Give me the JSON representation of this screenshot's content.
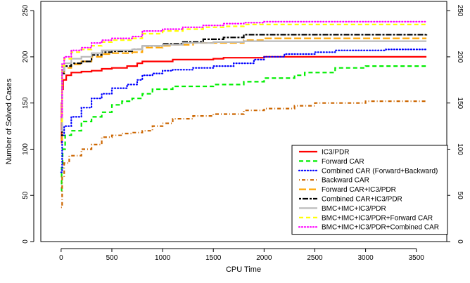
{
  "chart_data": {
    "type": "line",
    "title": "",
    "xlabel": "CPU Time",
    "ylabel": "Number of Solved Cases",
    "xlim": [
      -200,
      3800
    ],
    "ylim": [
      0,
      260
    ],
    "x_ticks": [
      "0",
      "500",
      "1000",
      "1500",
      "2000",
      "2500",
      "3000",
      "3500"
    ],
    "y_ticks": [
      "0",
      "50",
      "100",
      "150",
      "200",
      "250"
    ],
    "grid": false,
    "legend_position": "bottom-right",
    "series": [
      {
        "name": "IC3/PDR",
        "color": "#ff0000",
        "dash": "solid",
        "points": [
          [
            0,
            107
          ],
          [
            5,
            150
          ],
          [
            10,
            165
          ],
          [
            20,
            175
          ],
          [
            50,
            180
          ],
          [
            100,
            183
          ],
          [
            200,
            184
          ],
          [
            300,
            185
          ],
          [
            400,
            187
          ],
          [
            500,
            188
          ],
          [
            650,
            190
          ],
          [
            750,
            193
          ],
          [
            800,
            195
          ],
          [
            1000,
            195
          ],
          [
            1100,
            197
          ],
          [
            1500,
            198
          ],
          [
            1600,
            199
          ],
          [
            2000,
            200
          ],
          [
            3600,
            200
          ]
        ]
      },
      {
        "name": "Forward CAR",
        "color": "#00ee00",
        "dash": "dashed",
        "points": [
          [
            0,
            55
          ],
          [
            5,
            80
          ],
          [
            15,
            100
          ],
          [
            40,
            115
          ],
          [
            100,
            120
          ],
          [
            200,
            130
          ],
          [
            300,
            135
          ],
          [
            400,
            140
          ],
          [
            500,
            148
          ],
          [
            600,
            152
          ],
          [
            700,
            155
          ],
          [
            800,
            160
          ],
          [
            900,
            165
          ],
          [
            1000,
            165
          ],
          [
            1100,
            168
          ],
          [
            1500,
            170
          ],
          [
            1800,
            173
          ],
          [
            2000,
            177
          ],
          [
            2300,
            180
          ],
          [
            2400,
            183
          ],
          [
            2600,
            183
          ],
          [
            2700,
            188
          ],
          [
            3000,
            190
          ],
          [
            3600,
            190
          ]
        ]
      },
      {
        "name": "Combined CAR (Forward+Backward)",
        "color": "#0000ff",
        "dash": "dotted",
        "points": [
          [
            0,
            75
          ],
          [
            10,
            115
          ],
          [
            30,
            125
          ],
          [
            100,
            135
          ],
          [
            200,
            145
          ],
          [
            300,
            155
          ],
          [
            400,
            160
          ],
          [
            500,
            166
          ],
          [
            650,
            170
          ],
          [
            750,
            175
          ],
          [
            800,
            180
          ],
          [
            900,
            182
          ],
          [
            1000,
            185
          ],
          [
            1100,
            186
          ],
          [
            1300,
            188
          ],
          [
            1500,
            190
          ],
          [
            1700,
            193
          ],
          [
            1900,
            197
          ],
          [
            2000,
            200
          ],
          [
            2200,
            203
          ],
          [
            2500,
            205
          ],
          [
            2700,
            207
          ],
          [
            3000,
            207
          ],
          [
            3200,
            208
          ],
          [
            3600,
            208
          ]
        ]
      },
      {
        "name": "Backward CAR",
        "color": "#cc6600",
        "dash": "dashdot",
        "points": [
          [
            0,
            37
          ],
          [
            10,
            70
          ],
          [
            30,
            85
          ],
          [
            80,
            93
          ],
          [
            200,
            100
          ],
          [
            300,
            105
          ],
          [
            400,
            113
          ],
          [
            500,
            115
          ],
          [
            600,
            117
          ],
          [
            700,
            118
          ],
          [
            800,
            120
          ],
          [
            900,
            125
          ],
          [
            1000,
            128
          ],
          [
            1100,
            133
          ],
          [
            1300,
            136
          ],
          [
            1500,
            138
          ],
          [
            1800,
            142
          ],
          [
            2000,
            144
          ],
          [
            2300,
            147
          ],
          [
            2500,
            150
          ],
          [
            2700,
            150
          ],
          [
            3000,
            152
          ],
          [
            3600,
            153
          ]
        ]
      },
      {
        "name": "Forward CAR+IC3/PDR",
        "color": "#ffa500",
        "dash": "longdash",
        "points": [
          [
            0,
            110
          ],
          [
            10,
            180
          ],
          [
            30,
            188
          ],
          [
            100,
            192
          ],
          [
            200,
            195
          ],
          [
            300,
            200
          ],
          [
            400,
            203
          ],
          [
            500,
            204
          ],
          [
            700,
            205
          ],
          [
            800,
            210
          ],
          [
            1000,
            212
          ],
          [
            1100,
            213
          ],
          [
            1300,
            215
          ],
          [
            1700,
            215
          ],
          [
            1800,
            218
          ],
          [
            2000,
            220
          ],
          [
            3600,
            220
          ]
        ]
      },
      {
        "name": "Combined CAR+IC3/PDR",
        "color": "#000000",
        "dash": "twodash",
        "points": [
          [
            0,
            115
          ],
          [
            10,
            182
          ],
          [
            30,
            190
          ],
          [
            100,
            193
          ],
          [
            200,
            195
          ],
          [
            300,
            202
          ],
          [
            400,
            205
          ],
          [
            500,
            206
          ],
          [
            700,
            208
          ],
          [
            800,
            212
          ],
          [
            1000,
            214
          ],
          [
            1200,
            216
          ],
          [
            1400,
            219
          ],
          [
            1600,
            221
          ],
          [
            1800,
            224
          ],
          [
            2000,
            224
          ],
          [
            3600,
            225
          ]
        ]
      },
      {
        "name": "BMC+IMC+IC3/PDR",
        "color": "#bbbbbb",
        "dash": "solid",
        "points": [
          [
            0,
            120
          ],
          [
            10,
            185
          ],
          [
            30,
            193
          ],
          [
            100,
            198
          ],
          [
            200,
            200
          ],
          [
            300,
            204
          ],
          [
            400,
            207
          ],
          [
            600,
            207
          ],
          [
            700,
            208
          ],
          [
            800,
            212
          ],
          [
            1000,
            213
          ],
          [
            1200,
            215
          ],
          [
            1500,
            216
          ],
          [
            1800,
            217
          ],
          [
            2000,
            217
          ],
          [
            3600,
            217
          ]
        ]
      },
      {
        "name": "BMC+IMC+IC3/PDR+Forward CAR",
        "color": "#ffff00",
        "dash": "dashed",
        "points": [
          [
            0,
            130
          ],
          [
            10,
            190
          ],
          [
            30,
            198
          ],
          [
            100,
            205
          ],
          [
            200,
            208
          ],
          [
            300,
            212
          ],
          [
            400,
            216
          ],
          [
            500,
            218
          ],
          [
            700,
            220
          ],
          [
            800,
            225
          ],
          [
            1000,
            228
          ],
          [
            1200,
            230
          ],
          [
            1400,
            232
          ],
          [
            1600,
            233
          ],
          [
            1800,
            235
          ],
          [
            2000,
            235
          ],
          [
            3600,
            235
          ]
        ]
      },
      {
        "name": "BMC+IMC+IC3/PDR+Combined CAR",
        "color": "#ff00ff",
        "dash": "dotted",
        "points": [
          [
            0,
            135
          ],
          [
            10,
            192
          ],
          [
            30,
            200
          ],
          [
            100,
            207
          ],
          [
            200,
            210
          ],
          [
            300,
            215
          ],
          [
            400,
            218
          ],
          [
            500,
            220
          ],
          [
            700,
            222
          ],
          [
            800,
            228
          ],
          [
            1000,
            230
          ],
          [
            1200,
            232
          ],
          [
            1400,
            234
          ],
          [
            1600,
            236
          ],
          [
            1800,
            237
          ],
          [
            2000,
            238
          ],
          [
            3600,
            238
          ]
        ]
      }
    ]
  }
}
